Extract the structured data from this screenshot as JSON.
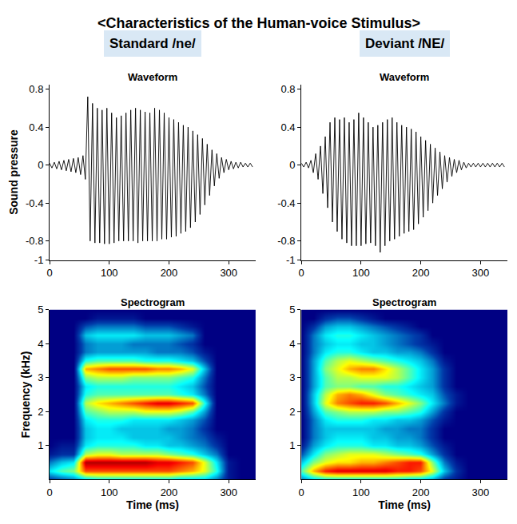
{
  "title": "<Characteristics of the Human-voice Stimulus>",
  "chart_data": [
    {
      "type": "line",
      "panel": "Standard /ne/",
      "title": "Waveform",
      "y_label": "Sound pressure",
      "color": "#000000",
      "grid": false,
      "x": [
        0,
        4,
        8,
        12,
        16,
        20,
        24,
        28,
        32,
        36,
        40,
        44,
        48,
        52,
        56,
        60,
        64,
        68,
        72,
        76,
        80,
        84,
        88,
        92,
        96,
        100,
        104,
        108,
        112,
        116,
        120,
        124,
        128,
        132,
        136,
        140,
        144,
        148,
        152,
        156,
        160,
        164,
        168,
        172,
        176,
        180,
        184,
        188,
        192,
        196,
        200,
        204,
        208,
        212,
        216,
        220,
        224,
        228,
        232,
        236,
        240,
        244,
        248,
        252,
        256,
        260,
        264,
        268,
        272,
        276,
        280,
        284,
        288,
        292,
        296,
        300,
        304,
        308,
        312,
        316,
        320,
        324,
        328,
        332,
        336,
        340
      ],
      "values": [
        0.02,
        -0.03,
        0.03,
        -0.04,
        0.04,
        -0.05,
        0.05,
        -0.06,
        0.06,
        -0.07,
        0.07,
        -0.08,
        0.08,
        -0.1,
        0.1,
        -0.15,
        0.72,
        -0.8,
        0.65,
        -0.82,
        0.6,
        -0.82,
        0.58,
        -0.83,
        0.6,
        -0.83,
        0.55,
        -0.82,
        0.5,
        -0.8,
        0.52,
        -0.8,
        0.55,
        -0.8,
        0.58,
        -0.8,
        0.6,
        -0.82,
        0.58,
        -0.8,
        0.56,
        -0.8,
        0.55,
        -0.8,
        0.6,
        -0.8,
        0.58,
        -0.78,
        0.55,
        -0.78,
        0.5,
        -0.76,
        0.48,
        -0.75,
        0.45,
        -0.72,
        0.42,
        -0.7,
        0.4,
        -0.66,
        0.36,
        -0.6,
        0.32,
        -0.52,
        0.28,
        -0.42,
        0.22,
        -0.32,
        0.16,
        -0.22,
        0.12,
        -0.14,
        0.08,
        -0.08,
        0.06,
        -0.05,
        0.04,
        -0.04,
        0.03,
        -0.03,
        0.03,
        -0.02,
        0.02,
        -0.02,
        0.02,
        -0.02
      ],
      "xlim": [
        0,
        345
      ],
      "xticks": [
        0,
        100,
        200,
        300
      ],
      "ylim": [
        -1,
        0.85
      ],
      "yticks": [
        -1,
        -0.8,
        -0.4,
        0,
        0.4,
        0.8
      ]
    },
    {
      "type": "line",
      "panel": "Deviant /NE/",
      "title": "Waveform",
      "color": "#000000",
      "grid": false,
      "x": [
        0,
        4,
        8,
        12,
        16,
        20,
        24,
        28,
        32,
        36,
        40,
        44,
        48,
        52,
        56,
        60,
        64,
        68,
        72,
        76,
        80,
        84,
        88,
        92,
        96,
        100,
        104,
        108,
        112,
        116,
        120,
        124,
        128,
        132,
        136,
        140,
        144,
        148,
        152,
        156,
        160,
        164,
        168,
        172,
        176,
        180,
        184,
        188,
        192,
        196,
        200,
        204,
        208,
        212,
        216,
        220,
        224,
        228,
        232,
        236,
        240,
        244,
        248,
        252,
        256,
        260,
        264,
        268,
        272,
        276,
        280,
        284,
        288,
        292,
        296,
        300,
        304,
        308,
        312,
        316,
        320,
        324,
        328,
        332,
        336,
        340
      ],
      "values": [
        0.02,
        -0.02,
        0.03,
        -0.03,
        0.05,
        -0.08,
        0.12,
        -0.15,
        0.2,
        -0.3,
        0.3,
        -0.45,
        0.45,
        -0.6,
        0.5,
        -0.7,
        0.48,
        -0.78,
        0.5,
        -0.82,
        0.45,
        -0.85,
        0.48,
        -0.85,
        0.55,
        -0.85,
        0.5,
        -0.83,
        0.45,
        -0.82,
        0.4,
        -0.85,
        0.42,
        -0.92,
        0.45,
        -0.85,
        0.48,
        -0.8,
        0.5,
        -0.78,
        0.45,
        -0.75,
        0.42,
        -0.72,
        0.4,
        -0.7,
        0.38,
        -0.68,
        0.35,
        -0.62,
        0.3,
        -0.55,
        0.26,
        -0.48,
        0.22,
        -0.4,
        0.18,
        -0.32,
        0.14,
        -0.25,
        0.1,
        -0.18,
        0.08,
        -0.12,
        0.06,
        -0.08,
        0.05,
        -0.05,
        0.03,
        -0.03,
        0.02,
        -0.02,
        0.02,
        -0.02,
        0.02,
        -0.02,
        0.02,
        -0.02,
        0.02,
        -0.02,
        0.02,
        -0.02,
        0.02,
        -0.02,
        0.02,
        -0.02
      ],
      "xlim": [
        0,
        345
      ],
      "xticks": [
        0,
        100,
        200,
        300
      ],
      "ylim": [
        -1,
        0.85
      ],
      "yticks": [
        -1,
        -0.8,
        -0.4,
        0,
        0.4,
        0.8
      ]
    },
    {
      "type": "heatmap",
      "title": "Spectrogram",
      "x_label": "Time (ms)",
      "y_label": "Frequency (kHz)",
      "color": "Jet",
      "grid": false,
      "x": [
        0,
        20,
        40,
        60,
        80,
        100,
        120,
        140,
        160,
        180,
        200,
        220,
        240,
        260,
        280,
        300,
        320,
        340
      ],
      "y": [
        0,
        0.25,
        0.5,
        0.75,
        1,
        1.25,
        1.5,
        1.75,
        2,
        2.25,
        2.5,
        2.75,
        3,
        3.25,
        3.5,
        3.75,
        4,
        4.25,
        4.5,
        4.75,
        5
      ],
      "cells": [
        [
          0.1,
          0.15,
          0.2,
          0.3,
          0.35,
          0.35,
          0.35,
          0.35,
          0.35,
          0.35,
          0.35,
          0.3,
          0.3,
          0.3,
          0.2,
          0.05,
          0,
          0
        ],
        [
          0.35,
          0.45,
          0.5,
          0.8,
          0.8,
          0.8,
          0.8,
          0.8,
          0.8,
          0.8,
          0.8,
          0.75,
          0.7,
          0.6,
          0.4,
          0.05,
          0,
          0
        ],
        [
          0.2,
          0.3,
          0.35,
          0.95,
          0.95,
          0.95,
          0.95,
          0.95,
          0.95,
          0.9,
          0.9,
          0.85,
          0.8,
          0.6,
          0.35,
          0.05,
          0,
          0
        ],
        [
          0.05,
          0.1,
          0.1,
          0.55,
          0.6,
          0.6,
          0.55,
          0.55,
          0.55,
          0.55,
          0.5,
          0.45,
          0.4,
          0.3,
          0.2,
          0,
          0,
          0
        ],
        [
          0,
          0.05,
          0.05,
          0.35,
          0.4,
          0.4,
          0.4,
          0.4,
          0.35,
          0.35,
          0.3,
          0.3,
          0.25,
          0.2,
          0.1,
          0,
          0,
          0
        ],
        [
          0,
          0,
          0,
          0.3,
          0.35,
          0.35,
          0.35,
          0.3,
          0.3,
          0.3,
          0.3,
          0.25,
          0.2,
          0.15,
          0.05,
          0,
          0,
          0
        ],
        [
          0,
          0,
          0,
          0.3,
          0.35,
          0.35,
          0.3,
          0.3,
          0.3,
          0.3,
          0.25,
          0.25,
          0.2,
          0.1,
          0,
          0,
          0,
          0
        ],
        [
          0,
          0,
          0,
          0.35,
          0.4,
          0.4,
          0.4,
          0.35,
          0.35,
          0.35,
          0.35,
          0.3,
          0.25,
          0.15,
          0,
          0,
          0,
          0
        ],
        [
          0,
          0,
          0,
          0.45,
          0.5,
          0.55,
          0.55,
          0.55,
          0.6,
          0.6,
          0.6,
          0.55,
          0.45,
          0.25,
          0,
          0,
          0,
          0
        ],
        [
          0,
          0,
          0,
          0.55,
          0.65,
          0.7,
          0.75,
          0.8,
          0.85,
          0.9,
          0.9,
          0.85,
          0.8,
          0.4,
          0,
          0,
          0,
          0
        ],
        [
          0,
          0,
          0,
          0.4,
          0.45,
          0.45,
          0.45,
          0.45,
          0.45,
          0.45,
          0.45,
          0.4,
          0.35,
          0.2,
          0,
          0,
          0,
          0
        ],
        [
          0,
          0,
          0,
          0.35,
          0.4,
          0.4,
          0.4,
          0.4,
          0.4,
          0.4,
          0.4,
          0.35,
          0.3,
          0.15,
          0,
          0,
          0,
          0
        ],
        [
          0,
          0,
          0,
          0.5,
          0.55,
          0.55,
          0.55,
          0.5,
          0.5,
          0.5,
          0.5,
          0.45,
          0.4,
          0.2,
          0,
          0,
          0,
          0
        ],
        [
          0,
          0,
          0,
          0.7,
          0.75,
          0.8,
          0.8,
          0.8,
          0.8,
          0.75,
          0.75,
          0.7,
          0.6,
          0.3,
          0,
          0,
          0,
          0
        ],
        [
          0,
          0,
          0,
          0.4,
          0.45,
          0.45,
          0.45,
          0.45,
          0.4,
          0.4,
          0.4,
          0.35,
          0.3,
          0.15,
          0,
          0,
          0,
          0
        ],
        [
          0,
          0,
          0,
          0.2,
          0.25,
          0.25,
          0.25,
          0.25,
          0.25,
          0.2,
          0.2,
          0.2,
          0.15,
          0.05,
          0,
          0,
          0,
          0
        ],
        [
          0,
          0,
          0,
          0.2,
          0.25,
          0.25,
          0.25,
          0.2,
          0.2,
          0.2,
          0.2,
          0.15,
          0.1,
          0,
          0,
          0,
          0,
          0
        ],
        [
          0,
          0,
          0,
          0.3,
          0.35,
          0.35,
          0.35,
          0.35,
          0.3,
          0.3,
          0.3,
          0.25,
          0.2,
          0,
          0,
          0,
          0,
          0
        ],
        [
          0,
          0,
          0,
          0.15,
          0.2,
          0.2,
          0.2,
          0.2,
          0.15,
          0.15,
          0.15,
          0.1,
          0.05,
          0,
          0,
          0,
          0,
          0
        ],
        [
          0,
          0,
          0,
          0,
          0.05,
          0.05,
          0.05,
          0.05,
          0,
          0,
          0,
          0,
          0,
          0,
          0,
          0,
          0,
          0
        ],
        [
          0,
          0,
          0,
          0,
          0,
          0,
          0,
          0,
          0,
          0,
          0,
          0,
          0,
          0,
          0,
          0,
          0,
          0
        ]
      ],
      "zlim": [
        0,
        1
      ],
      "xlim": [
        0,
        345
      ],
      "xticks": [
        0,
        100,
        200,
        300
      ],
      "ylim": [
        0,
        5
      ],
      "yticks": [
        1,
        2,
        3,
        4,
        5
      ]
    },
    {
      "type": "heatmap",
      "title": "Spectrogram",
      "x_label": "Time (ms)",
      "color": "Jet",
      "grid": false,
      "x": [
        0,
        20,
        40,
        60,
        80,
        100,
        120,
        140,
        160,
        180,
        200,
        220,
        240,
        260,
        280,
        300,
        320,
        340
      ],
      "y": [
        0,
        0.25,
        0.5,
        0.75,
        1,
        1.25,
        1.5,
        1.75,
        2,
        2.25,
        2.5,
        2.75,
        3,
        3.25,
        3.5,
        3.75,
        4,
        4.25,
        4.5,
        4.75,
        5
      ],
      "cells": [
        [
          0.2,
          0.3,
          0.35,
          0.35,
          0.35,
          0.35,
          0.35,
          0.35,
          0.35,
          0.3,
          0.3,
          0.25,
          0.1,
          0.05,
          0,
          0,
          0,
          0
        ],
        [
          0.45,
          0.7,
          0.85,
          0.9,
          0.9,
          0.9,
          0.9,
          0.9,
          0.85,
          0.85,
          0.8,
          0.6,
          0.3,
          0.1,
          0,
          0,
          0,
          0
        ],
        [
          0.3,
          0.5,
          0.6,
          0.65,
          0.65,
          0.7,
          0.7,
          0.75,
          0.8,
          0.85,
          0.85,
          0.5,
          0.2,
          0.05,
          0,
          0,
          0,
          0
        ],
        [
          0.15,
          0.35,
          0.5,
          0.55,
          0.6,
          0.6,
          0.6,
          0.55,
          0.5,
          0.45,
          0.4,
          0.25,
          0.1,
          0,
          0,
          0,
          0,
          0
        ],
        [
          0.05,
          0.25,
          0.35,
          0.4,
          0.4,
          0.4,
          0.35,
          0.35,
          0.3,
          0.3,
          0.25,
          0.15,
          0.05,
          0,
          0,
          0,
          0,
          0
        ],
        [
          0,
          0.2,
          0.3,
          0.35,
          0.35,
          0.35,
          0.3,
          0.3,
          0.25,
          0.25,
          0.2,
          0.1,
          0,
          0,
          0,
          0,
          0,
          0
        ],
        [
          0,
          0.2,
          0.3,
          0.3,
          0.3,
          0.3,
          0.3,
          0.25,
          0.25,
          0.2,
          0.2,
          0.1,
          0,
          0,
          0,
          0,
          0,
          0
        ],
        [
          0,
          0.2,
          0.35,
          0.4,
          0.4,
          0.4,
          0.35,
          0.35,
          0.3,
          0.3,
          0.25,
          0.15,
          0.05,
          0,
          0,
          0,
          0,
          0
        ],
        [
          0,
          0.25,
          0.45,
          0.5,
          0.55,
          0.55,
          0.55,
          0.5,
          0.5,
          0.45,
          0.4,
          0.25,
          0.1,
          0,
          0,
          0,
          0,
          0
        ],
        [
          0,
          0.3,
          0.6,
          0.75,
          0.8,
          0.85,
          0.85,
          0.8,
          0.7,
          0.6,
          0.5,
          0.35,
          0.2,
          0.05,
          0,
          0,
          0,
          0
        ],
        [
          0,
          0.3,
          0.55,
          0.7,
          0.75,
          0.7,
          0.6,
          0.5,
          0.45,
          0.4,
          0.35,
          0.3,
          0.15,
          0.05,
          0,
          0,
          0,
          0
        ],
        [
          0,
          0.25,
          0.45,
          0.5,
          0.5,
          0.45,
          0.45,
          0.4,
          0.4,
          0.35,
          0.3,
          0.25,
          0.1,
          0,
          0,
          0,
          0,
          0
        ],
        [
          0,
          0.25,
          0.45,
          0.55,
          0.55,
          0.6,
          0.6,
          0.6,
          0.55,
          0.45,
          0.35,
          0.25,
          0.1,
          0,
          0,
          0,
          0,
          0
        ],
        [
          0,
          0.25,
          0.5,
          0.6,
          0.7,
          0.75,
          0.75,
          0.65,
          0.55,
          0.45,
          0.35,
          0.25,
          0.1,
          0,
          0,
          0,
          0,
          0
        ],
        [
          0,
          0.25,
          0.45,
          0.55,
          0.6,
          0.55,
          0.5,
          0.45,
          0.4,
          0.35,
          0.3,
          0.2,
          0.05,
          0,
          0,
          0,
          0,
          0
        ],
        [
          0,
          0.2,
          0.35,
          0.4,
          0.4,
          0.35,
          0.3,
          0.3,
          0.25,
          0.25,
          0.2,
          0.1,
          0,
          0,
          0,
          0,
          0,
          0
        ],
        [
          0,
          0.2,
          0.3,
          0.35,
          0.35,
          0.3,
          0.3,
          0.25,
          0.2,
          0.15,
          0.1,
          0.05,
          0,
          0,
          0,
          0,
          0,
          0
        ],
        [
          0,
          0.2,
          0.35,
          0.4,
          0.4,
          0.35,
          0.3,
          0.25,
          0.2,
          0.15,
          0.1,
          0,
          0,
          0,
          0,
          0,
          0,
          0
        ],
        [
          0,
          0.1,
          0.25,
          0.3,
          0.3,
          0.25,
          0.2,
          0.15,
          0.1,
          0.05,
          0,
          0,
          0,
          0,
          0,
          0,
          0,
          0
        ],
        [
          0,
          0,
          0.1,
          0.15,
          0.15,
          0.1,
          0.05,
          0,
          0,
          0,
          0,
          0,
          0,
          0,
          0,
          0,
          0,
          0
        ],
        [
          0,
          0,
          0,
          0,
          0,
          0,
          0,
          0,
          0,
          0,
          0,
          0,
          0,
          0,
          0,
          0,
          0,
          0
        ]
      ],
      "zlim": [
        0,
        1
      ],
      "xlim": [
        0,
        345
      ],
      "xticks": [
        0,
        100,
        200,
        300
      ],
      "ylim": [
        0,
        5
      ],
      "yticks": [
        1,
        2,
        3,
        4,
        5
      ]
    }
  ]
}
